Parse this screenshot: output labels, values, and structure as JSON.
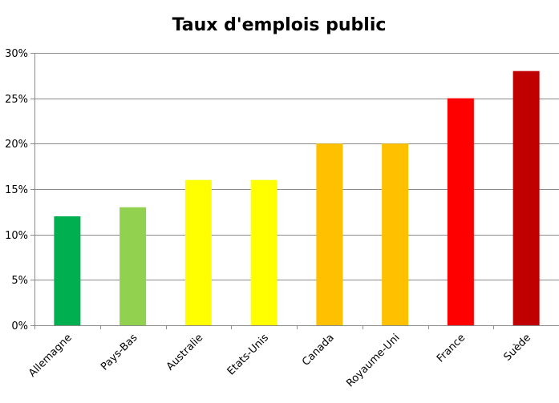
{
  "chart_data": {
    "type": "bar",
    "title": "Taux d'emplois public",
    "xlabel": "",
    "ylabel": "",
    "ylim": [
      0,
      30
    ],
    "ytick_step": 5,
    "ytick_suffix": "%",
    "grid": true,
    "legend": "none",
    "categories": [
      "Allemagne",
      "Pays-Bas",
      "Australie",
      "Etats-Unis",
      "Canada",
      "Royaume-Uni",
      "France",
      "Suède"
    ],
    "values": [
      12,
      13,
      16,
      16,
      20,
      20,
      25,
      28
    ],
    "colors": [
      "#00b050",
      "#92d050",
      "#ffff00",
      "#ffff00",
      "#ffc000",
      "#ffc000",
      "#ff0000",
      "#c00000"
    ]
  }
}
